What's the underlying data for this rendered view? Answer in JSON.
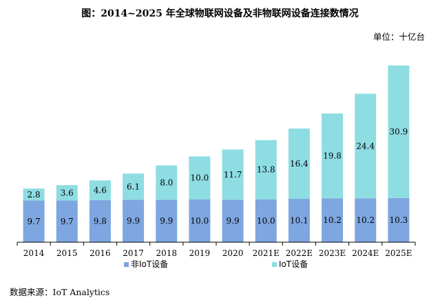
{
  "title": "图：2014~2025 年全球物联网设备及非物联网设备连接数情况",
  "unit_label": "单位：十亿台",
  "source": {
    "prefix": "数据来源：",
    "name": "IoT Analytics"
  },
  "colors": {
    "non_iot": "#7ea6e0",
    "iot": "#8edde3",
    "axis": "#000000"
  },
  "chart_data": {
    "type": "bar",
    "stacked": true,
    "categories": [
      "2014",
      "2015",
      "2016",
      "2017",
      "2018",
      "2019",
      "2020",
      "2021E",
      "2022E",
      "2023E",
      "2024E",
      "2025E"
    ],
    "series": [
      {
        "name": "非IoT设备",
        "values": [
          9.7,
          9.7,
          9.8,
          9.9,
          9.9,
          10.0,
          9.9,
          10.0,
          10.1,
          10.2,
          10.2,
          10.3
        ],
        "labels": [
          "9.7",
          "9.7",
          "9.8",
          "9.9",
          "9.9",
          "10.0",
          "9.9",
          "10.0",
          "10.1",
          "10.2",
          "10.2",
          "10.3"
        ]
      },
      {
        "name": "IoT设备",
        "values": [
          2.8,
          3.6,
          4.6,
          6.1,
          8.0,
          10.0,
          11.7,
          13.8,
          16.4,
          19.8,
          24.4,
          30.9
        ],
        "labels": [
          "2.8",
          "3.6",
          "4.6",
          "6.1",
          "8.0",
          "10.0",
          "11.7",
          "13.8",
          "16.4",
          "19.8",
          "24.4",
          "30.9"
        ]
      }
    ],
    "ylim": [
      0,
      45
    ],
    "y_axis_visible": false,
    "grid": false,
    "legend_position": "bottom"
  }
}
